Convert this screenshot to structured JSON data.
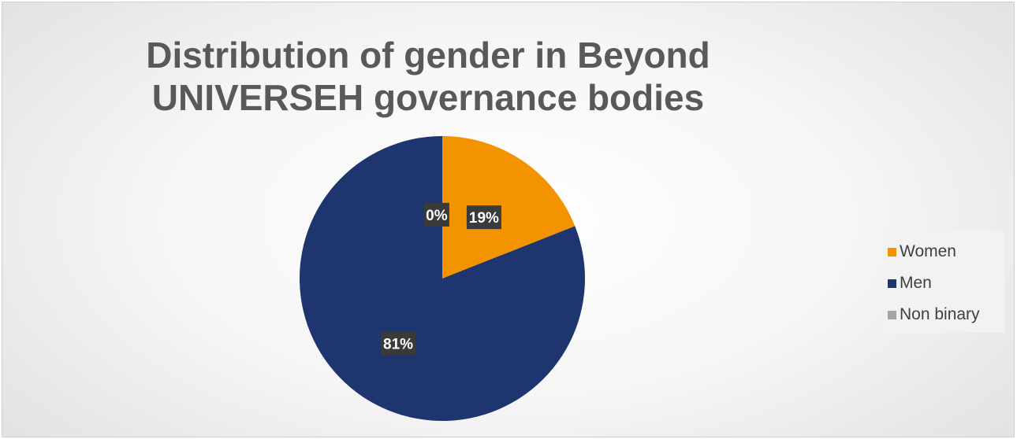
{
  "chart_data": {
    "type": "pie",
    "title": "Distribution of gender in Beyond UNIVERSEH governance bodies",
    "categories": [
      "Women",
      "Men",
      "Non binary"
    ],
    "values": [
      19,
      81,
      0
    ],
    "data_labels": [
      "19%",
      "81%",
      "0%"
    ],
    "colors": [
      "#f39300",
      "#1f356f",
      "#a5a5a5"
    ],
    "legend_position": "right",
    "start_angle": "12 o'clock",
    "direction": "clockwise"
  }
}
